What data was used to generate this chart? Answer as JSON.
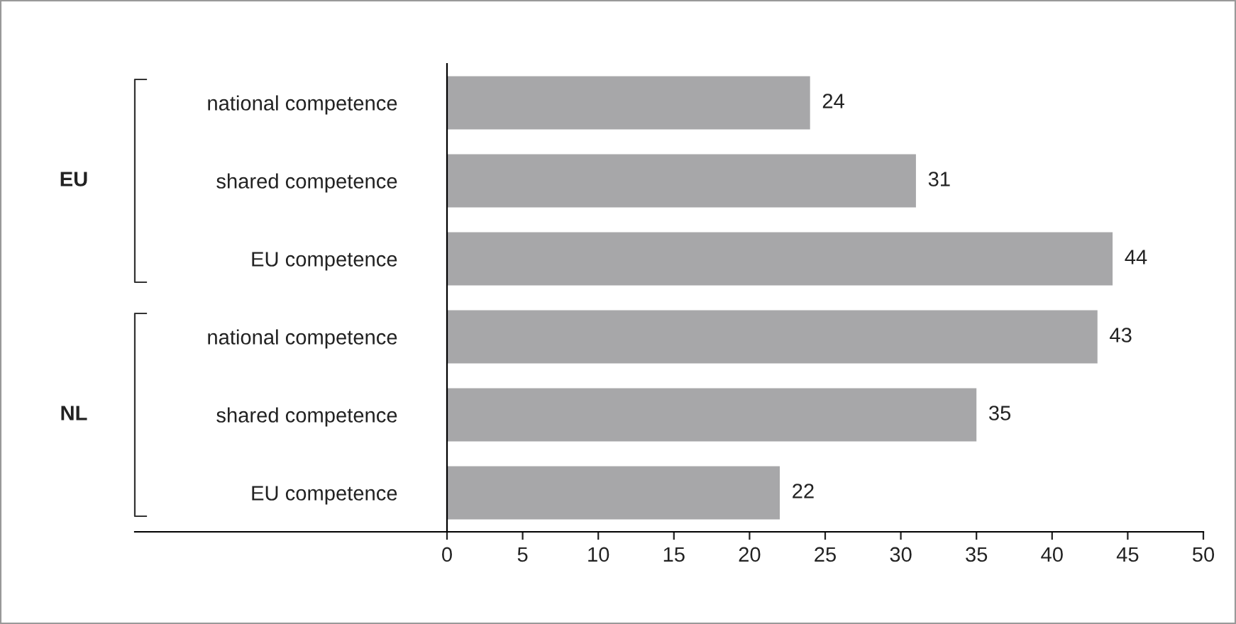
{
  "chart_data": {
    "type": "bar",
    "orientation": "horizontal",
    "categories": [
      "national competence",
      "shared competence",
      "EU competence",
      "national competence",
      "shared competence",
      "EU competence"
    ],
    "values": [
      24,
      31,
      44,
      43,
      35,
      22
    ],
    "color": "#a7a7a9",
    "data_labels": true,
    "annotations": [
      "EU",
      "NL"
    ],
    "xlim": [
      0,
      50
    ],
    "xticks": [
      0,
      5,
      10,
      15,
      20,
      25,
      30,
      35,
      40,
      45,
      50
    ],
    "grid": false,
    "legend": false
  }
}
